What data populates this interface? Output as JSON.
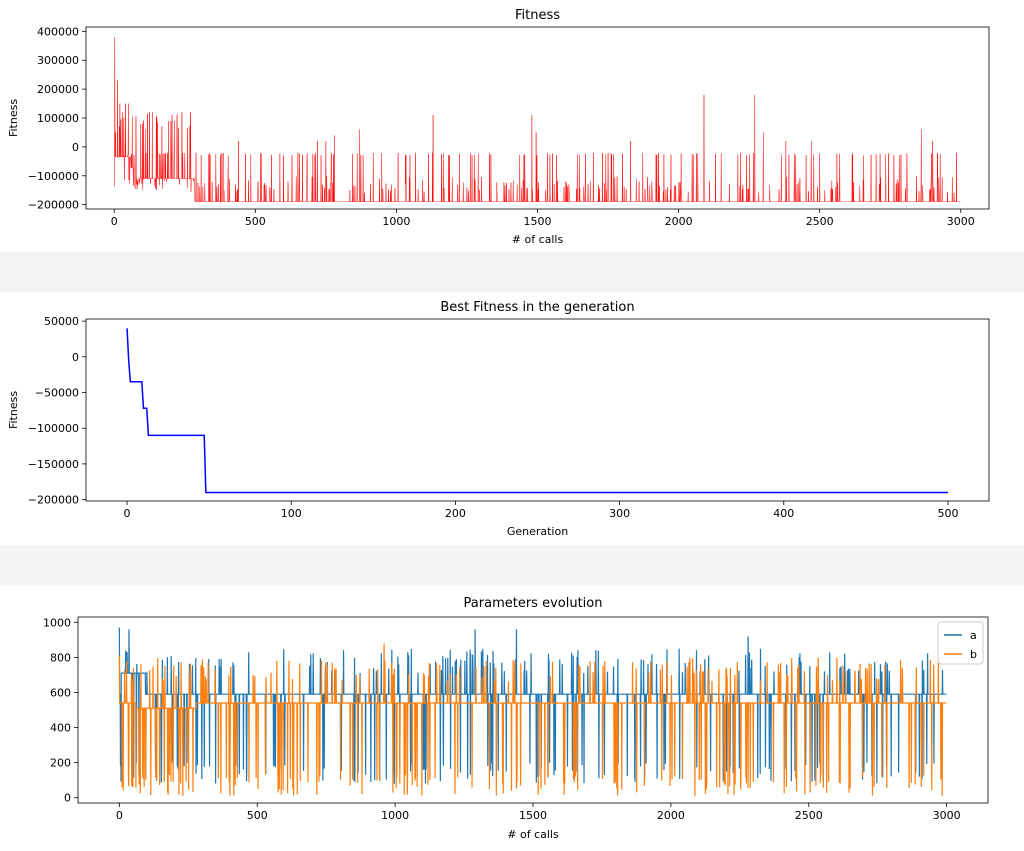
{
  "chart_data": [
    {
      "type": "line",
      "title": "Fitness",
      "xlabel": "# of calls",
      "ylabel": "Fitness",
      "xlim": [
        -100,
        3100
      ],
      "ylim": [
        -215000,
        415000
      ],
      "xticks": [
        0,
        500,
        1000,
        1500,
        2000,
        2500,
        3000
      ],
      "yticks": [
        -200000,
        -100000,
        0,
        100000,
        200000,
        300000,
        400000
      ],
      "grid": false,
      "series": [
        {
          "color": "#ff0000",
          "x_range": [
            0,
            2999
          ],
          "floor_levels": [
            {
              "from": 0,
              "to": 60,
              "value": -35000
            },
            {
              "from": 60,
              "to": 75,
              "value": -72000
            },
            {
              "from": 75,
              "to": 285,
              "value": -110000
            },
            {
              "from": 285,
              "to": 2999,
              "value": -190000
            }
          ],
          "peaks": [
            {
              "x": 2,
              "y": 380000
            },
            {
              "x": 5,
              "y": 50000
            },
            {
              "x": 12,
              "y": 230000
            },
            {
              "x": 20,
              "y": 150000
            },
            {
              "x": 40,
              "y": 150000
            },
            {
              "x": 50,
              "y": 150000
            },
            {
              "x": 110,
              "y": 60000
            },
            {
              "x": 125,
              "y": 120000
            },
            {
              "x": 135,
              "y": 120000
            },
            {
              "x": 240,
              "y": 120000
            },
            {
              "x": 270,
              "y": 120000
            },
            {
              "x": 440,
              "y": 20000
            },
            {
              "x": 720,
              "y": 20000
            },
            {
              "x": 750,
              "y": 20000
            },
            {
              "x": 780,
              "y": 40000
            },
            {
              "x": 870,
              "y": 60000
            },
            {
              "x": 1130,
              "y": 110000
            },
            {
              "x": 1480,
              "y": 110000
            },
            {
              "x": 1495,
              "y": 50000
            },
            {
              "x": 1830,
              "y": 20000
            },
            {
              "x": 2090,
              "y": 180000
            },
            {
              "x": 2270,
              "y": 180000
            },
            {
              "x": 2300,
              "y": 50000
            },
            {
              "x": 2380,
              "y": 20000
            },
            {
              "x": 2470,
              "y": 20000
            },
            {
              "x": 2860,
              "y": 60000
            },
            {
              "x": 2900,
              "y": 20000
            },
            {
              "x": 2985,
              "y": -20000
            }
          ],
          "linewidth_px": 0.5
        }
      ]
    },
    {
      "type": "line",
      "title": "Best Fitness in the generation",
      "xlabel": "Generation",
      "ylabel": "Fitness",
      "xlim": [
        -25,
        525
      ],
      "ylim": [
        -202000,
        53000
      ],
      "xticks": [
        0,
        100,
        200,
        300,
        400,
        500
      ],
      "yticks": [
        -200000,
        -150000,
        -100000,
        -50000,
        0,
        50000
      ],
      "grid": false,
      "series": [
        {
          "color": "#0000ff",
          "x": [
            0,
            1,
            2,
            9,
            10,
            12,
            13,
            47,
            48,
            500
          ],
          "y": [
            40000,
            -5000,
            -35000,
            -35000,
            -72000,
            -72000,
            -110000,
            -110000,
            -190000,
            -190000
          ]
        }
      ]
    },
    {
      "type": "line",
      "title": "Parameters evolution",
      "xlabel": "# of calls",
      "ylabel": "",
      "xlim": [
        -150,
        3150
      ],
      "ylim": [
        -30,
        1030
      ],
      "xticks": [
        0,
        500,
        1000,
        1500,
        2000,
        2500,
        3000
      ],
      "yticks": [
        0,
        200,
        400,
        600,
        800,
        1000
      ],
      "grid": false,
      "legend": "top-right",
      "series": [
        {
          "name": "a",
          "color": "#1f77b4",
          "baseline": 590,
          "x_range": [
            0,
            2999
          ],
          "highlights": [
            {
              "x": 0,
              "y": 970
            },
            {
              "x": 5,
              "y": 370
            },
            {
              "x": 35,
              "y": 960
            },
            {
              "x": 40,
              "y": 710
            },
            {
              "x": 1290,
              "y": 960
            },
            {
              "x": 1440,
              "y": 960
            },
            {
              "x": 2280,
              "y": 920
            }
          ],
          "range_min": 80,
          "range_max": 970
        },
        {
          "name": "b",
          "color": "#ff7f0e",
          "baseline": 540,
          "x_range": [
            0,
            2999
          ],
          "highlights": [
            {
              "x": 0,
              "y": 810
            },
            {
              "x": 10,
              "y": 60
            },
            {
              "x": 230,
              "y": 10
            },
            {
              "x": 960,
              "y": 880
            },
            {
              "x": 2970,
              "y": 810
            }
          ],
          "range_min": 10,
          "range_max": 890
        }
      ]
    }
  ]
}
